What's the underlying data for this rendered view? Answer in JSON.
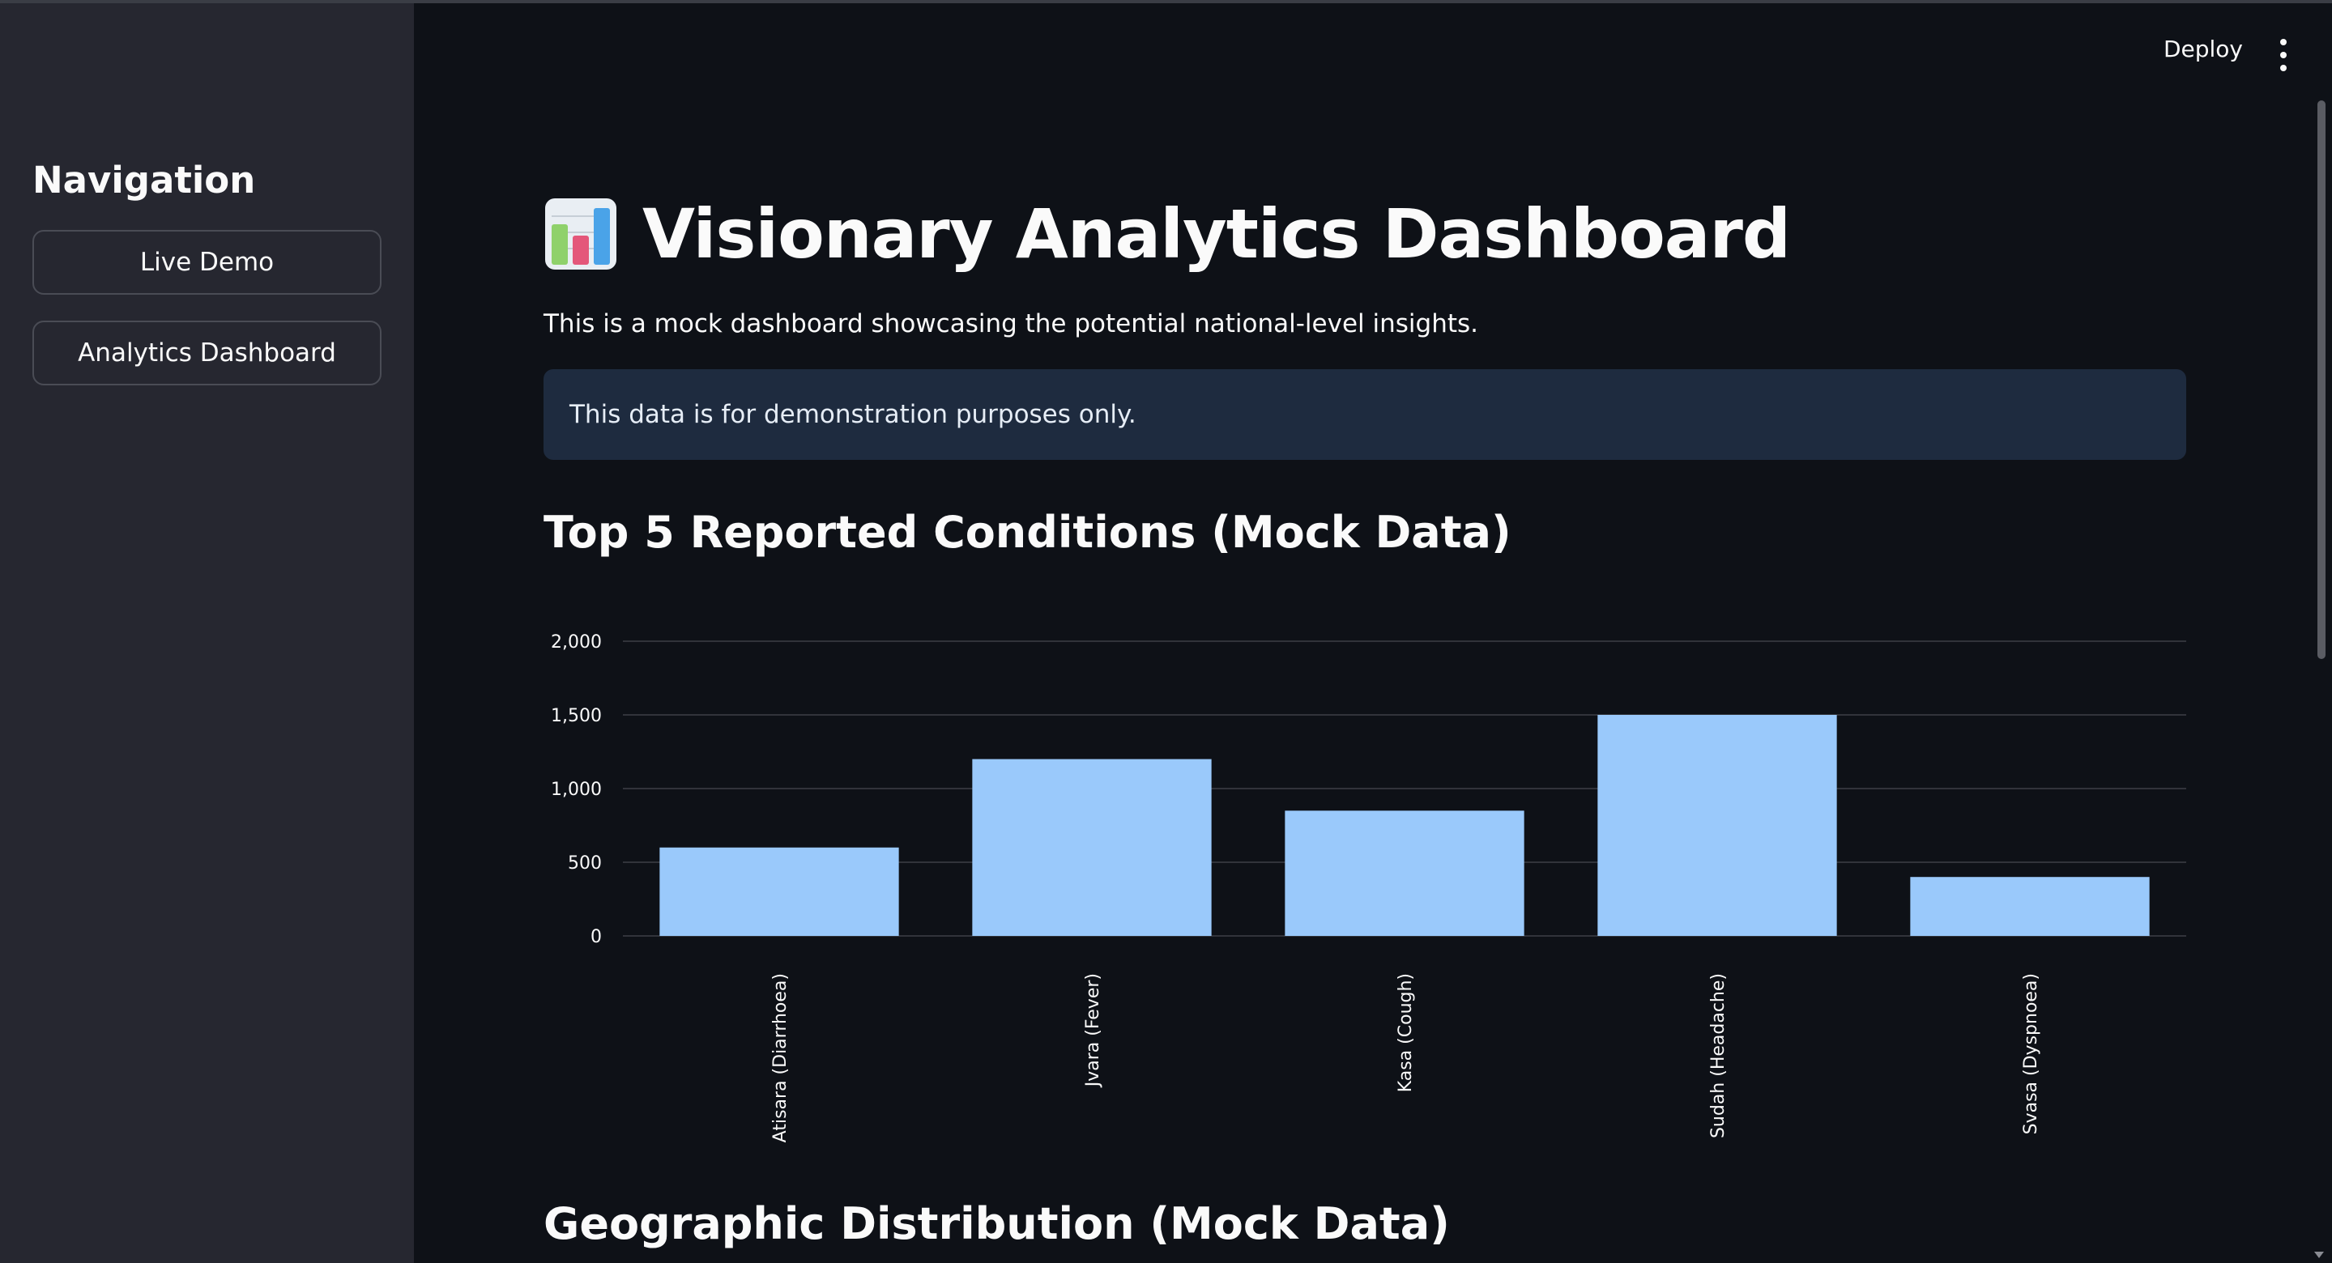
{
  "sidebar": {
    "title": "Navigation",
    "buttons": [
      {
        "label": "Live Demo"
      },
      {
        "label": "Analytics Dashboard"
      }
    ]
  },
  "header": {
    "deploy_label": "Deploy",
    "menu_icon": "kebab-menu-icon"
  },
  "main": {
    "title_icon": "bar-chart-icon",
    "title": "Visionary Analytics Dashboard",
    "subtitle": "This is a mock dashboard showcasing the potential national-level insights.",
    "info": "This data is for demonstration purposes only.",
    "section1_title": "Top 5 Reported Conditions (Mock Data)",
    "section2_title": "Geographic Distribution (Mock Data)"
  },
  "colors": {
    "bar": "#9ac9fb",
    "info_bg": "#1e2b3f",
    "sidebar_bg": "#262730",
    "main_bg": "#0e1117"
  },
  "chart_data": {
    "type": "bar",
    "categories": [
      "Atisara (Diarrhoea)",
      "Jvara (Fever)",
      "Kasa (Cough)",
      "Sudah (Headache)",
      "Svasa (Dyspnoea)"
    ],
    "values": [
      600,
      1200,
      850,
      1500,
      400
    ],
    "ylim": [
      0,
      2000
    ],
    "yticks": [
      0,
      500,
      1000,
      1500,
      2000
    ],
    "ytick_labels": [
      "0",
      "500",
      "1,000",
      "1,500",
      "2,000"
    ],
    "grid": true
  }
}
